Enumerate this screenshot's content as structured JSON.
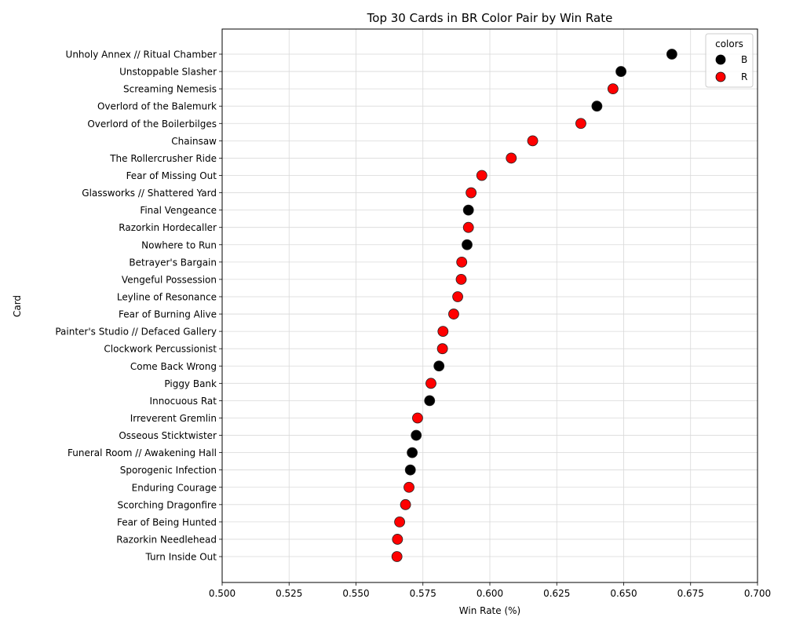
{
  "chart_data": {
    "type": "scatter",
    "title": "Top 30 Cards in BR Color Pair by Win Rate",
    "xlabel": "Win Rate (%)",
    "ylabel": "Card",
    "xlim": [
      0.5,
      0.7
    ],
    "xticks": [
      "0.500",
      "0.525",
      "0.550",
      "0.575",
      "0.600",
      "0.625",
      "0.650",
      "0.675",
      "0.700"
    ],
    "grid": true,
    "legend": {
      "title": "colors",
      "placement": "top-right",
      "entries": [
        {
          "label": "B",
          "color": "#000000"
        },
        {
          "label": "R",
          "color": "#ff0000"
        }
      ]
    },
    "points": [
      {
        "card": "Unholy Annex // Ritual Chamber",
        "win_rate": 0.668,
        "color": "B"
      },
      {
        "card": "Unstoppable Slasher",
        "win_rate": 0.649,
        "color": "B"
      },
      {
        "card": "Screaming Nemesis",
        "win_rate": 0.646,
        "color": "R"
      },
      {
        "card": "Overlord of the Balemurk",
        "win_rate": 0.64,
        "color": "B"
      },
      {
        "card": "Overlord of the Boilerbilges",
        "win_rate": 0.634,
        "color": "R"
      },
      {
        "card": "Chainsaw",
        "win_rate": 0.616,
        "color": "R"
      },
      {
        "card": "The Rollercrusher Ride",
        "win_rate": 0.608,
        "color": "R"
      },
      {
        "card": "Fear of Missing Out",
        "win_rate": 0.597,
        "color": "R"
      },
      {
        "card": "Glassworks // Shattered Yard",
        "win_rate": 0.593,
        "color": "R"
      },
      {
        "card": "Final Vengeance",
        "win_rate": 0.592,
        "color": "B"
      },
      {
        "card": "Razorkin Hordecaller",
        "win_rate": 0.592,
        "color": "R"
      },
      {
        "card": "Nowhere to Run",
        "win_rate": 0.5915,
        "color": "B"
      },
      {
        "card": "Betrayer's Bargain",
        "win_rate": 0.5895,
        "color": "R"
      },
      {
        "card": "Vengeful Possession",
        "win_rate": 0.5893,
        "color": "R"
      },
      {
        "card": "Leyline of Resonance",
        "win_rate": 0.588,
        "color": "R"
      },
      {
        "card": "Fear of Burning Alive",
        "win_rate": 0.5865,
        "color": "R"
      },
      {
        "card": "Painter's Studio // Defaced Gallery",
        "win_rate": 0.5825,
        "color": "R"
      },
      {
        "card": "Clockwork Percussionist",
        "win_rate": 0.5823,
        "color": "R"
      },
      {
        "card": "Come Back Wrong",
        "win_rate": 0.581,
        "color": "B"
      },
      {
        "card": "Piggy Bank",
        "win_rate": 0.578,
        "color": "R"
      },
      {
        "card": "Innocuous Rat",
        "win_rate": 0.5775,
        "color": "B"
      },
      {
        "card": "Irreverent Gremlin",
        "win_rate": 0.573,
        "color": "R"
      },
      {
        "card": "Osseous Sticktwister",
        "win_rate": 0.5725,
        "color": "B"
      },
      {
        "card": "Funeral Room // Awakening Hall",
        "win_rate": 0.571,
        "color": "B"
      },
      {
        "card": "Sporogenic Infection",
        "win_rate": 0.5703,
        "color": "B"
      },
      {
        "card": "Enduring Courage",
        "win_rate": 0.5698,
        "color": "R"
      },
      {
        "card": "Scorching Dragonfire",
        "win_rate": 0.5685,
        "color": "R"
      },
      {
        "card": "Fear of Being Hunted",
        "win_rate": 0.5663,
        "color": "R"
      },
      {
        "card": "Razorkin Needlehead",
        "win_rate": 0.5655,
        "color": "R"
      },
      {
        "card": "Turn Inside Out",
        "win_rate": 0.5653,
        "color": "R"
      }
    ]
  }
}
